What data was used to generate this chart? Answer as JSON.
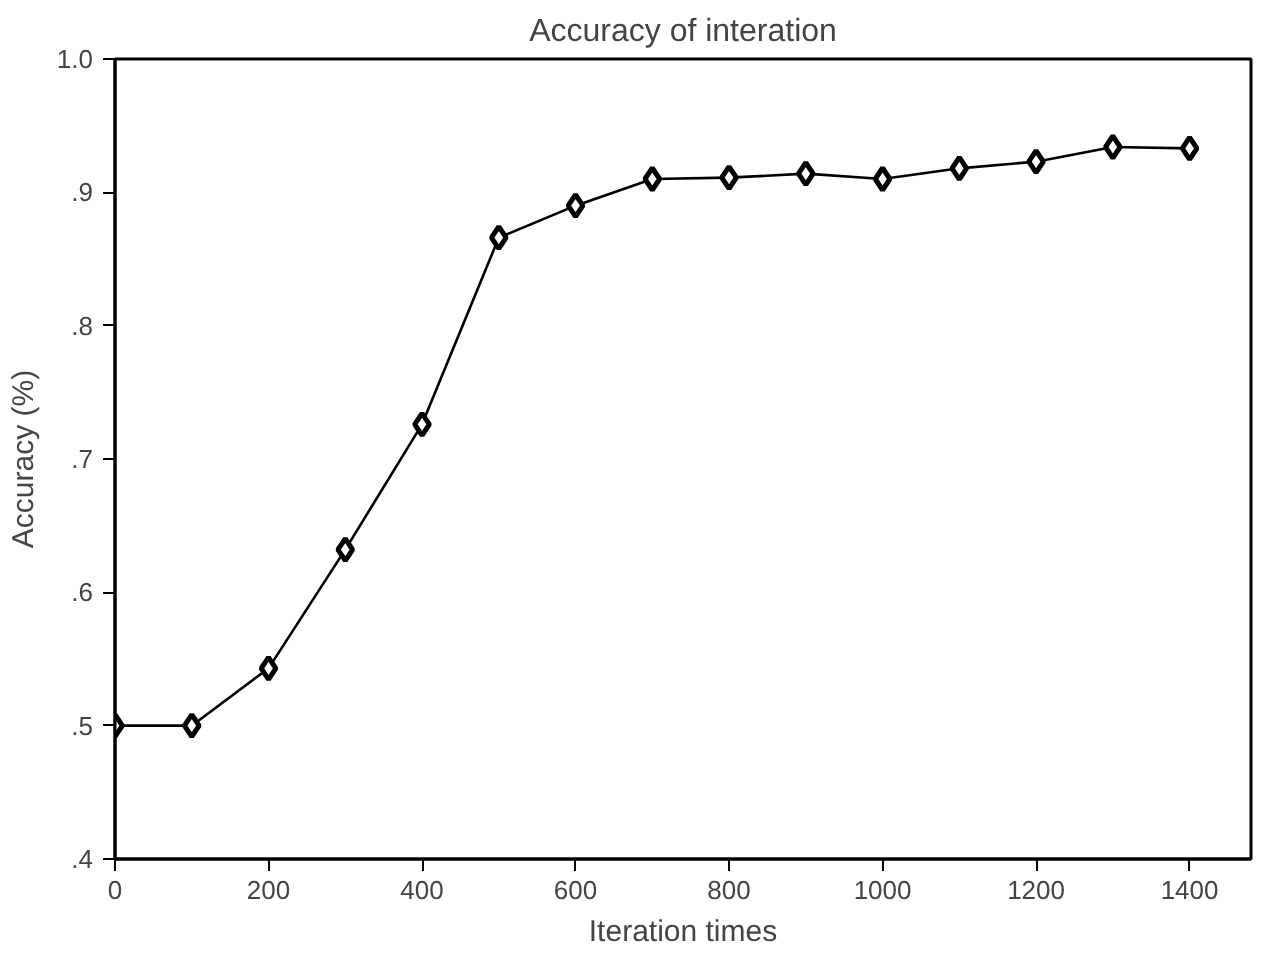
{
  "chart_data": {
    "type": "line",
    "title": "Accuracy of interation",
    "xlabel": "Iteration times",
    "ylabel": "Accuracy (%)",
    "x": [
      0,
      100,
      200,
      300,
      400,
      500,
      600,
      700,
      800,
      900,
      1000,
      1100,
      1200,
      1300,
      1400
    ],
    "series": [
      {
        "color": "#000000",
        "values": [
          0.5,
          0.5,
          0.543,
          0.632,
          0.726,
          0.866,
          0.89,
          0.91,
          0.911,
          0.914,
          0.91,
          0.918,
          0.923,
          0.934,
          0.933
        ]
      }
    ],
    "xlim": [
      0,
      1480
    ],
    "ylim": [
      0.4,
      1.0
    ],
    "xticks": [
      0,
      200,
      400,
      600,
      800,
      1000,
      1200,
      1400
    ],
    "yticks": [
      {
        "value": 0.4,
        "label": ".4"
      },
      {
        "value": 0.5,
        "label": ".5"
      },
      {
        "value": 0.6,
        "label": ".6"
      },
      {
        "value": 0.7,
        "label": ".7"
      },
      {
        "value": 0.8,
        "label": ".8"
      },
      {
        "value": 0.9,
        "label": ".9"
      },
      {
        "value": 1.0,
        "label": "1.0"
      }
    ],
    "marker": "diamond",
    "line_style": "solid",
    "grid": false
  }
}
